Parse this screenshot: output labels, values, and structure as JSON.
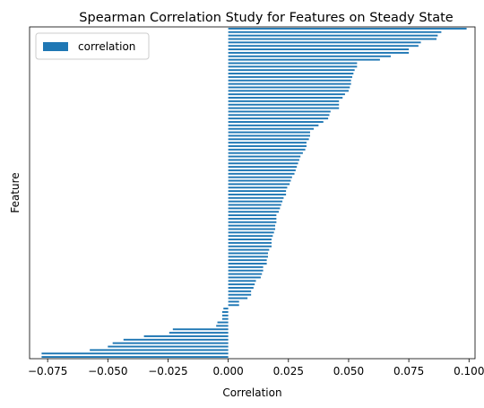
{
  "chart_data": {
    "type": "bar",
    "orientation": "horizontal",
    "title": "Spearman Correlation Study for Features on Steady State",
    "xlabel": "Correlation",
    "ylabel": "Feature",
    "xlim": [
      -0.0825,
      0.1025
    ],
    "xticks": [
      "−0.075",
      "−0.050",
      "−0.025",
      "0.000",
      "0.025",
      "0.050",
      "0.075",
      "0.100"
    ],
    "xtick_values": [
      -0.075,
      -0.05,
      -0.025,
      0.0,
      0.025,
      0.05,
      0.075,
      0.1
    ],
    "legend": {
      "position": "top-left",
      "entries": [
        "correlation"
      ]
    },
    "grid": false,
    "bar_color": "#1f77b4",
    "series": [
      {
        "name": "correlation",
        "values": [
          -0.0775,
          -0.0775,
          -0.0575,
          -0.05,
          -0.048,
          -0.0435,
          -0.035,
          -0.0245,
          -0.023,
          -0.005,
          -0.0045,
          -0.0025,
          -0.0025,
          -0.0025,
          -0.002,
          0.0045,
          0.0045,
          0.008,
          0.0095,
          0.0095,
          0.0105,
          0.011,
          0.0115,
          0.0135,
          0.014,
          0.0145,
          0.0145,
          0.016,
          0.016,
          0.0165,
          0.0165,
          0.017,
          0.018,
          0.018,
          0.018,
          0.0185,
          0.019,
          0.0195,
          0.0195,
          0.02,
          0.02,
          0.02,
          0.021,
          0.0215,
          0.022,
          0.0225,
          0.023,
          0.024,
          0.024,
          0.0245,
          0.0255,
          0.026,
          0.0265,
          0.0275,
          0.028,
          0.0285,
          0.029,
          0.0295,
          0.03,
          0.031,
          0.032,
          0.0325,
          0.0325,
          0.0335,
          0.034,
          0.034,
          0.0355,
          0.0375,
          0.0395,
          0.0415,
          0.042,
          0.0425,
          0.046,
          0.046,
          0.046,
          0.0475,
          0.0485,
          0.05,
          0.0505,
          0.051,
          0.051,
          0.0515,
          0.052,
          0.0525,
          0.0535,
          0.0535,
          0.063,
          0.0675,
          0.075,
          0.075,
          0.079,
          0.08,
          0.0865,
          0.087,
          0.0885,
          0.099
        ]
      }
    ]
  }
}
